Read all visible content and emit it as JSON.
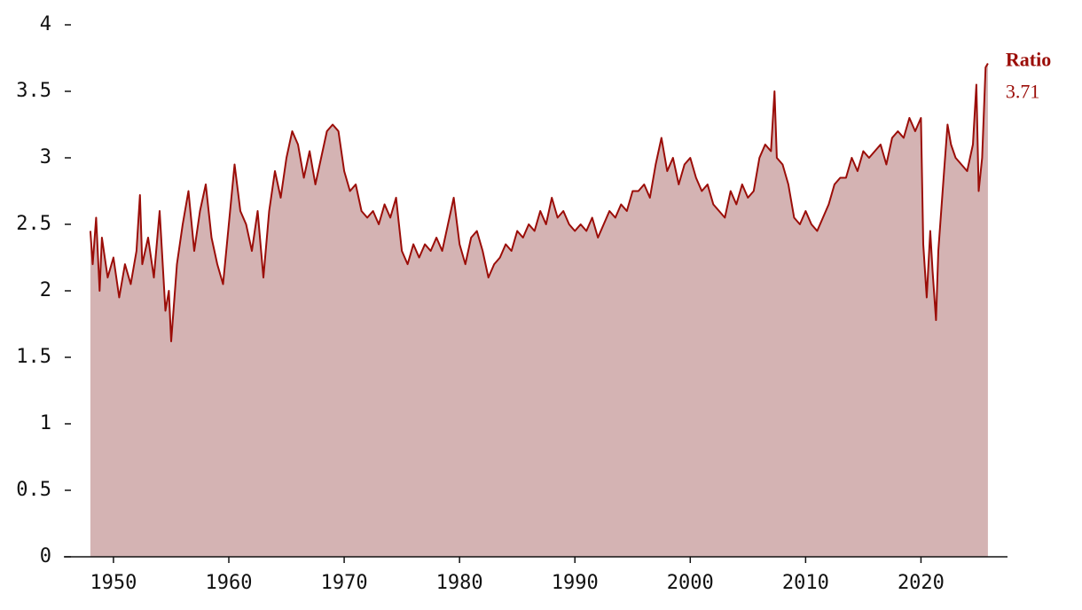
{
  "chart_data": {
    "type": "area",
    "series": [
      {
        "name": "Ratio",
        "color": "#9b0d08",
        "fill": "#d4b3b3",
        "x": [
          1948.0,
          1948.2,
          1948.5,
          1948.8,
          1949.0,
          1949.5,
          1950.0,
          1950.5,
          1951.0,
          1951.5,
          1952.0,
          1952.3,
          1952.5,
          1953.0,
          1953.5,
          1954.0,
          1954.5,
          1954.8,
          1955.0,
          1955.5,
          1956.0,
          1956.5,
          1957.0,
          1957.5,
          1958.0,
          1958.5,
          1959.0,
          1959.5,
          1960.0,
          1960.5,
          1961.0,
          1961.5,
          1962.0,
          1962.5,
          1963.0,
          1963.5,
          1964.0,
          1964.5,
          1965.0,
          1965.5,
          1966.0,
          1966.5,
          1967.0,
          1967.5,
          1968.0,
          1968.5,
          1969.0,
          1969.5,
          1970.0,
          1970.5,
          1971.0,
          1971.5,
          1972.0,
          1972.5,
          1973.0,
          1973.5,
          1974.0,
          1974.5,
          1975.0,
          1975.5,
          1976.0,
          1976.5,
          1977.0,
          1977.5,
          1978.0,
          1978.5,
          1979.0,
          1979.5,
          1980.0,
          1980.5,
          1981.0,
          1981.5,
          1982.0,
          1982.5,
          1983.0,
          1983.5,
          1984.0,
          1984.5,
          1985.0,
          1985.5,
          1986.0,
          1986.5,
          1987.0,
          1987.5,
          1988.0,
          1988.5,
          1989.0,
          1989.5,
          1990.0,
          1990.5,
          1991.0,
          1991.5,
          1992.0,
          1992.5,
          1993.0,
          1993.5,
          1994.0,
          1994.5,
          1995.0,
          1995.5,
          1996.0,
          1996.5,
          1997.0,
          1997.5,
          1998.0,
          1998.5,
          1999.0,
          1999.5,
          2000.0,
          2000.5,
          2001.0,
          2001.5,
          2002.0,
          2002.5,
          2003.0,
          2003.5,
          2004.0,
          2004.5,
          2005.0,
          2005.5,
          2006.0,
          2006.5,
          2007.0,
          2007.3,
          2007.5,
          2008.0,
          2008.5,
          2009.0,
          2009.5,
          2010.0,
          2010.5,
          2011.0,
          2011.5,
          2012.0,
          2012.5,
          2013.0,
          2013.5,
          2014.0,
          2014.5,
          2015.0,
          2015.5,
          2016.0,
          2016.5,
          2017.0,
          2017.5,
          2018.0,
          2018.5,
          2019.0,
          2019.5,
          2020.0,
          2020.2,
          2020.5,
          2020.8,
          2021.0,
          2021.3,
          2021.5,
          2022.0,
          2022.3,
          2022.6,
          2023.0,
          2023.5,
          2024.0,
          2024.5,
          2024.8,
          2025.0,
          2025.3,
          2025.6,
          2025.8
        ],
        "values": [
          2.45,
          2.2,
          2.55,
          2.0,
          2.4,
          2.1,
          2.25,
          1.95,
          2.2,
          2.05,
          2.3,
          2.72,
          2.2,
          2.4,
          2.1,
          2.6,
          1.85,
          2.0,
          1.62,
          2.2,
          2.5,
          2.75,
          2.3,
          2.6,
          2.8,
          2.4,
          2.2,
          2.05,
          2.5,
          2.95,
          2.6,
          2.5,
          2.3,
          2.6,
          2.1,
          2.6,
          2.9,
          2.7,
          3.0,
          3.2,
          3.1,
          2.85,
          3.05,
          2.8,
          3.0,
          3.2,
          3.25,
          3.2,
          2.9,
          2.75,
          2.8,
          2.6,
          2.55,
          2.6,
          2.5,
          2.65,
          2.55,
          2.7,
          2.3,
          2.2,
          2.35,
          2.25,
          2.35,
          2.3,
          2.4,
          2.3,
          2.5,
          2.7,
          2.35,
          2.2,
          2.4,
          2.45,
          2.3,
          2.1,
          2.2,
          2.25,
          2.35,
          2.3,
          2.45,
          2.4,
          2.5,
          2.45,
          2.6,
          2.5,
          2.7,
          2.55,
          2.6,
          2.5,
          2.45,
          2.5,
          2.45,
          2.55,
          2.4,
          2.5,
          2.6,
          2.55,
          2.65,
          2.6,
          2.75,
          2.75,
          2.8,
          2.7,
          2.95,
          3.15,
          2.9,
          3.0,
          2.8,
          2.95,
          3.0,
          2.85,
          2.75,
          2.8,
          2.65,
          2.6,
          2.55,
          2.75,
          2.65,
          2.8,
          2.7,
          2.75,
          3.0,
          3.1,
          3.05,
          3.5,
          3.0,
          2.95,
          2.8,
          2.55,
          2.5,
          2.6,
          2.5,
          2.45,
          2.55,
          2.65,
          2.8,
          2.85,
          2.85,
          3.0,
          2.9,
          3.05,
          3.0,
          3.05,
          3.1,
          2.95,
          3.15,
          3.2,
          3.15,
          3.3,
          3.2,
          3.3,
          2.35,
          1.95,
          2.45,
          2.15,
          1.78,
          2.3,
          2.9,
          3.25,
          3.1,
          3.0,
          2.95,
          2.9,
          3.1,
          3.55,
          2.75,
          3.0,
          3.68,
          3.71
        ]
      }
    ],
    "xlim": [
      1945.7,
      2027.5
    ],
    "xticks": [
      1950,
      1960,
      1970,
      1980,
      1990,
      2000,
      2010,
      2020
    ],
    "ylim": [
      0,
      4
    ],
    "yticks": [
      0,
      0.5,
      1,
      1.5,
      2,
      2.5,
      3,
      3.5,
      4
    ]
  }
}
